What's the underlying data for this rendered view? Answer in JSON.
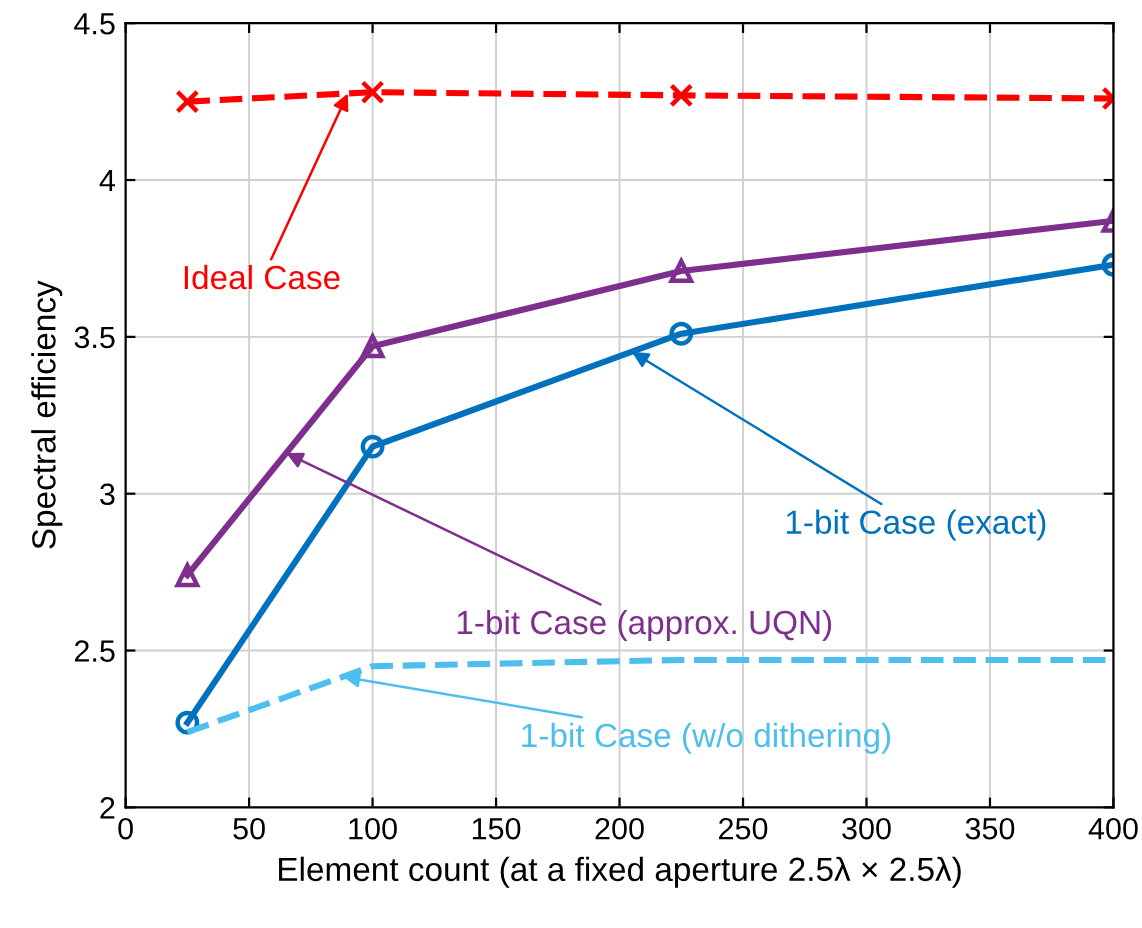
{
  "chart_data": {
    "type": "line",
    "xlabel": "Element count (at a fixed aperture 2.5λ × 2.5λ)",
    "ylabel": "Spectral efficiency",
    "x": [
      25,
      100,
      225,
      400
    ],
    "series": [
      {
        "name": "Ideal Case",
        "color": "#ff0000",
        "values": [
          4.25,
          4.28,
          4.27,
          4.26
        ],
        "marker": "cross",
        "line_style": "dashed"
      },
      {
        "name": "1-bit Case (exact)",
        "color": "#0072bd",
        "values": [
          2.27,
          3.15,
          3.51,
          3.73
        ],
        "marker": "circle",
        "line_style": "solid"
      },
      {
        "name": "1-bit Case (approx. UQN)",
        "color": "#7e2f8e",
        "values": [
          2.74,
          3.47,
          3.71,
          3.87
        ],
        "marker": "triangle",
        "line_style": "solid"
      },
      {
        "name": "1-bit Case (w/o dithering)",
        "color": "#4dbeee",
        "values": [
          2.24,
          2.45,
          2.47,
          2.47
        ],
        "marker": "none",
        "line_style": "dashed"
      }
    ],
    "xlim": [
      0,
      400
    ],
    "xticks": [
      0,
      50,
      100,
      150,
      200,
      250,
      300,
      350,
      400
    ],
    "ylim": [
      2,
      4.5
    ],
    "yticks": [
      2,
      2.5,
      3,
      3.5,
      4,
      4.5
    ],
    "grid": true,
    "legend": false
  }
}
